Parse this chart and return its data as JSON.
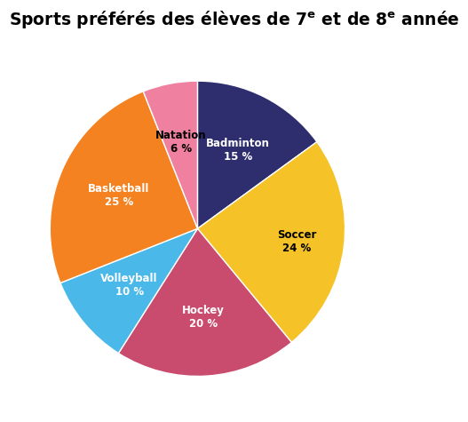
{
  "title": "Sports préférés des élèves de 7$^\\mathregular{e}$ et de 8$^\\mathregular{e}$ année",
  "labels": [
    "Badminton\n15 %",
    "Soccer\n24 %",
    "Hockey\n20 %",
    "Volleyball\n10 %",
    "Basketball\n25 %",
    "Natation\n6 %"
  ],
  "sizes": [
    15,
    24,
    20,
    10,
    25,
    6
  ],
  "colors": [
    "#2e2d6e",
    "#f5c327",
    "#c94b6d",
    "#4ab8e8",
    "#f58220",
    "#f080a0"
  ],
  "label_colors": [
    "white",
    "black",
    "white",
    "white",
    "white",
    "black"
  ],
  "label_radii": [
    0.6,
    0.68,
    0.6,
    0.6,
    0.58,
    0.6
  ],
  "startangle": 90,
  "counterclock": false,
  "background_color": "#ffffff",
  "title_fontsize": 13.5,
  "label_fontsize": 8.5
}
